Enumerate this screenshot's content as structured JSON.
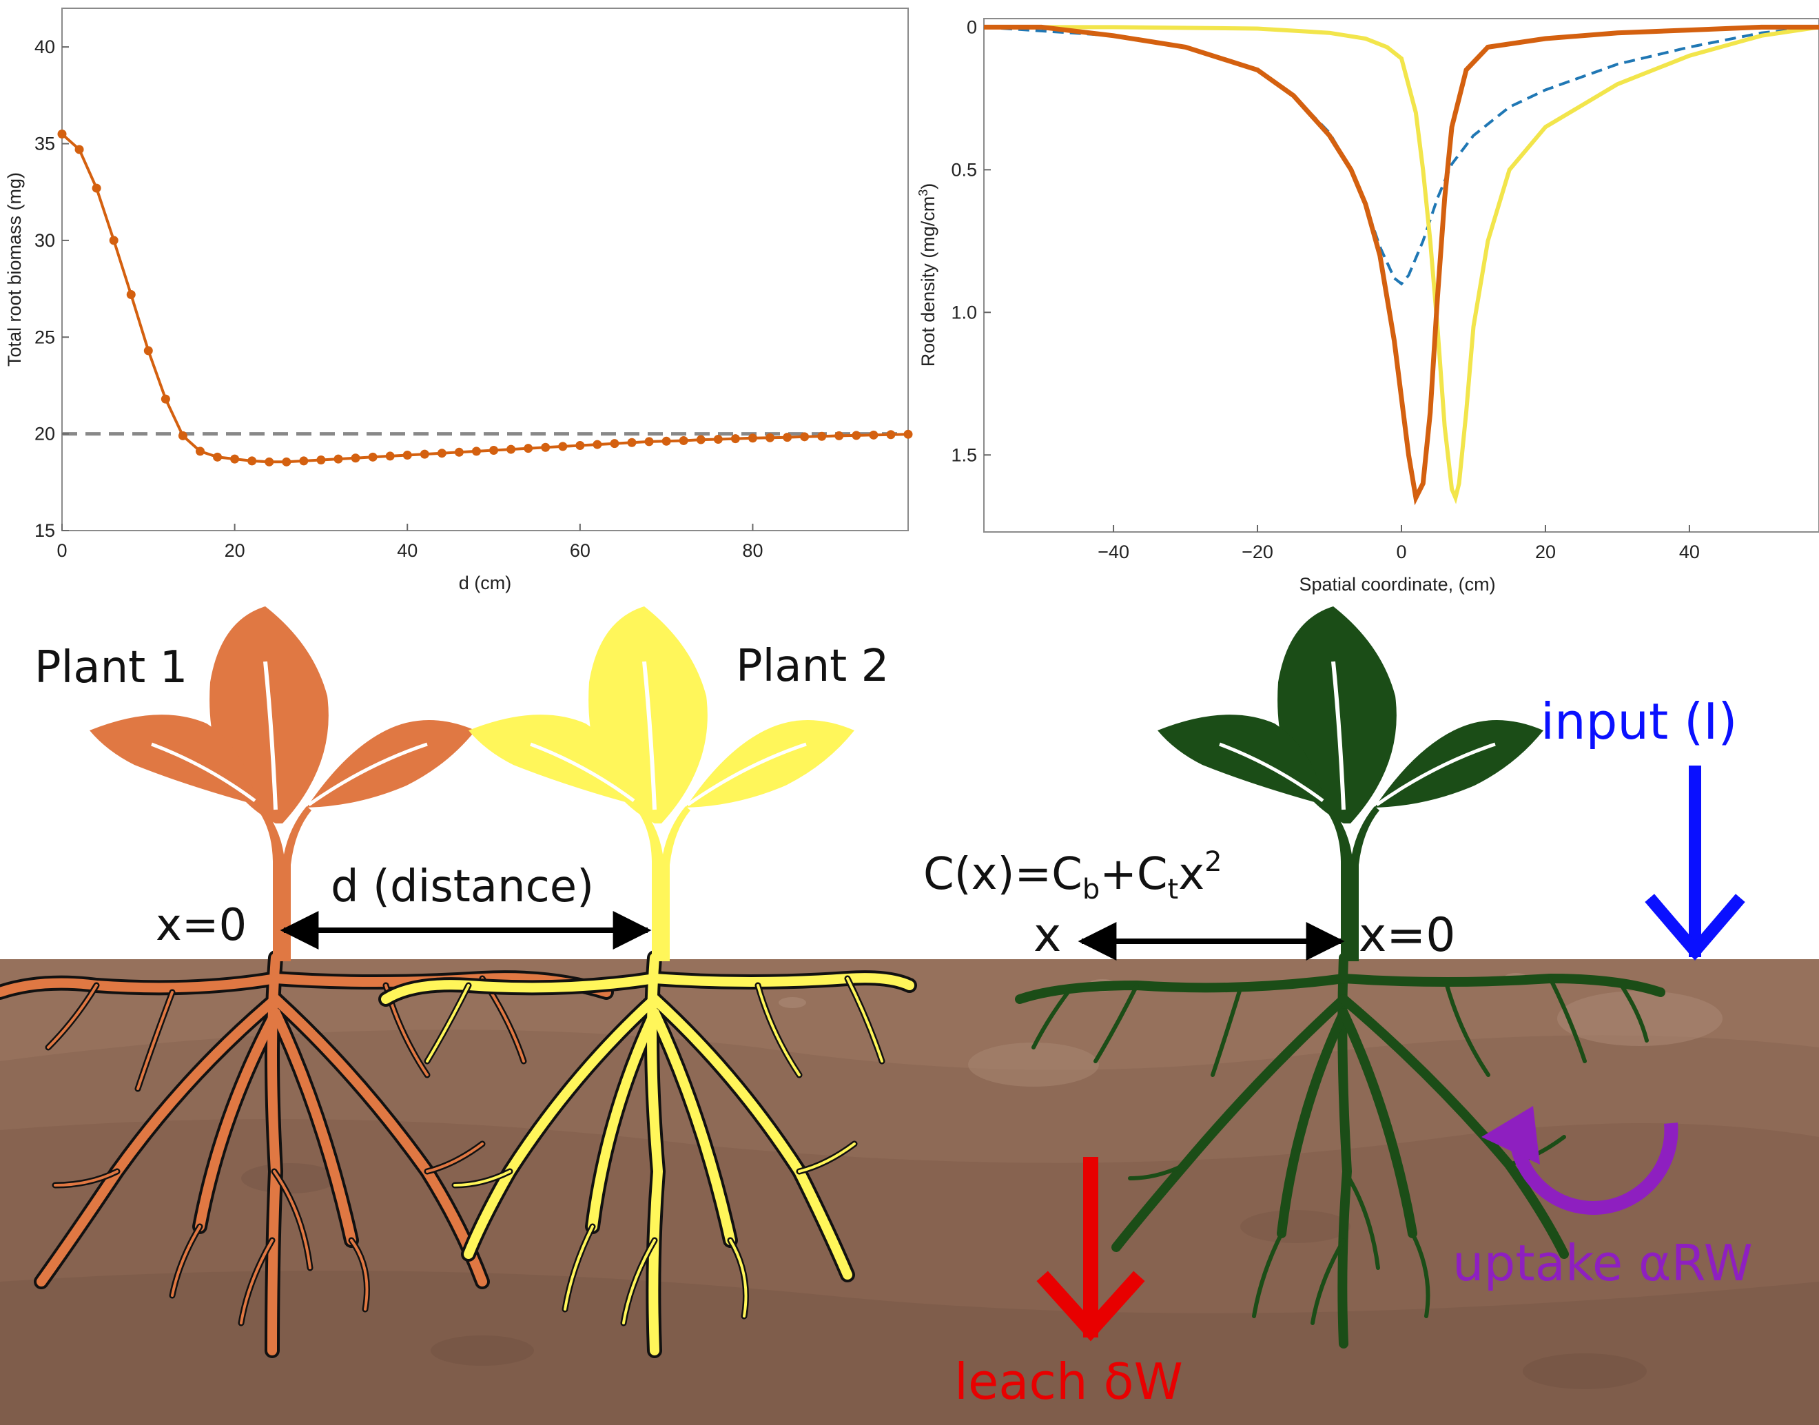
{
  "colors": {
    "plant1": "#E07843",
    "plant2": "#FFF65A",
    "green_plant": "#1B4D17",
    "biomass_line": "#D4600F",
    "orange_curve": "#D4600F",
    "yellow_curve": "#F2E54B",
    "blue_dashed": "#1F77B4",
    "soil": "#8E6A56",
    "input_arrow": "#0A10FF",
    "leach_arrow": "#E80000",
    "uptake_arrow": "#8E1FC0"
  },
  "chart_data": [
    {
      "type": "line",
      "xlabel": "d (cm)",
      "ylabel": "Total root biomass (mg)",
      "xlim": [
        0,
        98
      ],
      "ylim": [
        15,
        42
      ],
      "xticks": [
        "0",
        "20",
        "40",
        "60",
        "80"
      ],
      "yticks": [
        "15",
        "20",
        "25",
        "30",
        "35",
        "40"
      ],
      "reference_line": {
        "y": 20,
        "style": "dashed"
      },
      "series": [
        {
          "marker": "circle",
          "x": [
            0,
            2,
            4,
            6,
            8,
            10,
            12,
            14,
            16,
            18,
            20,
            22,
            24,
            26,
            28,
            30,
            32,
            34,
            36,
            38,
            40,
            42,
            44,
            46,
            48,
            50,
            52,
            54,
            56,
            58,
            60,
            62,
            64,
            66,
            68,
            70,
            72,
            74,
            76,
            78,
            80,
            82,
            84,
            86,
            88,
            90,
            92,
            94,
            96,
            98
          ],
          "y": [
            35.5,
            34.7,
            32.7,
            30.0,
            27.2,
            24.3,
            21.8,
            19.9,
            19.1,
            18.8,
            18.7,
            18.6,
            18.55,
            18.55,
            18.6,
            18.65,
            18.7,
            18.75,
            18.8,
            18.85,
            18.9,
            18.95,
            19.0,
            19.05,
            19.1,
            19.15,
            19.2,
            19.25,
            19.3,
            19.35,
            19.4,
            19.45,
            19.5,
            19.55,
            19.6,
            19.62,
            19.65,
            19.7,
            19.72,
            19.75,
            19.78,
            19.8,
            19.82,
            19.85,
            19.87,
            19.9,
            19.92,
            19.94,
            19.96,
            19.98
          ]
        }
      ]
    },
    {
      "type": "line",
      "xlabel": "Spatial coordinate, (cm)",
      "ylabel": "Root density (mg/cm³)",
      "xlim": [
        -58,
        58
      ],
      "ylim": [
        1.77,
        -0.03
      ],
      "y_inverted": true,
      "xticks": [
        "-40",
        "-20",
        "0",
        "20",
        "40"
      ],
      "yticks": [
        "0",
        "0.5",
        "1.0",
        "1.5"
      ],
      "series": [
        {
          "style": "solid",
          "color_key": "orange_curve",
          "x": [
            -58,
            -50,
            -40,
            -30,
            -20,
            -15,
            -10,
            -7,
            -5,
            -3,
            -1,
            0,
            1,
            2,
            3,
            4,
            5,
            6,
            7,
            9,
            12,
            20,
            30,
            40,
            50,
            58
          ],
          "y": [
            0,
            0,
            0.03,
            0.07,
            0.15,
            0.24,
            0.38,
            0.5,
            0.62,
            0.8,
            1.1,
            1.3,
            1.5,
            1.65,
            1.6,
            1.35,
            0.95,
            0.6,
            0.35,
            0.15,
            0.07,
            0.04,
            0.02,
            0.01,
            0,
            0
          ]
        },
        {
          "style": "solid",
          "color_key": "yellow_curve",
          "x": [
            -58,
            -40,
            -20,
            -10,
            -5,
            -2,
            0,
            2,
            3,
            4,
            5,
            6,
            7,
            7.5,
            8,
            9,
            10,
            12,
            15,
            20,
            30,
            40,
            50,
            58
          ],
          "y": [
            0,
            0,
            0.005,
            0.02,
            0.04,
            0.07,
            0.11,
            0.3,
            0.5,
            0.75,
            1.05,
            1.4,
            1.62,
            1.65,
            1.6,
            1.35,
            1.05,
            0.75,
            0.5,
            0.35,
            0.2,
            0.1,
            0.03,
            0
          ]
        },
        {
          "style": "dashed",
          "color_key": "blue_dashed",
          "x": [
            -58,
            -40,
            -30,
            -20,
            -15,
            -10,
            -7,
            -5,
            -3,
            -1,
            0,
            1,
            3,
            5,
            7,
            10,
            15,
            20,
            30,
            40,
            50,
            58
          ],
          "y": [
            0,
            0.03,
            0.07,
            0.15,
            0.24,
            0.37,
            0.5,
            0.62,
            0.77,
            0.88,
            0.9,
            0.87,
            0.75,
            0.6,
            0.48,
            0.38,
            0.28,
            0.22,
            0.13,
            0.07,
            0.02,
            0
          ]
        }
      ]
    }
  ],
  "left_diagram": {
    "plant1_label": "Plant 1",
    "plant2_label": "Plant 2",
    "distance_label": "d (distance)",
    "origin_label": "x=0"
  },
  "right_diagram": {
    "equation_prefix": "C(x)=C",
    "equation_sub_b": "b",
    "equation_mid": "+C",
    "equation_sub_t": "t",
    "equation_x": "x",
    "equation_sup": "2",
    "x_label": "x",
    "origin_label": "x=0",
    "input_label": "input (I)",
    "uptake_label": "uptake αRW",
    "leach_label": "leach δW"
  }
}
